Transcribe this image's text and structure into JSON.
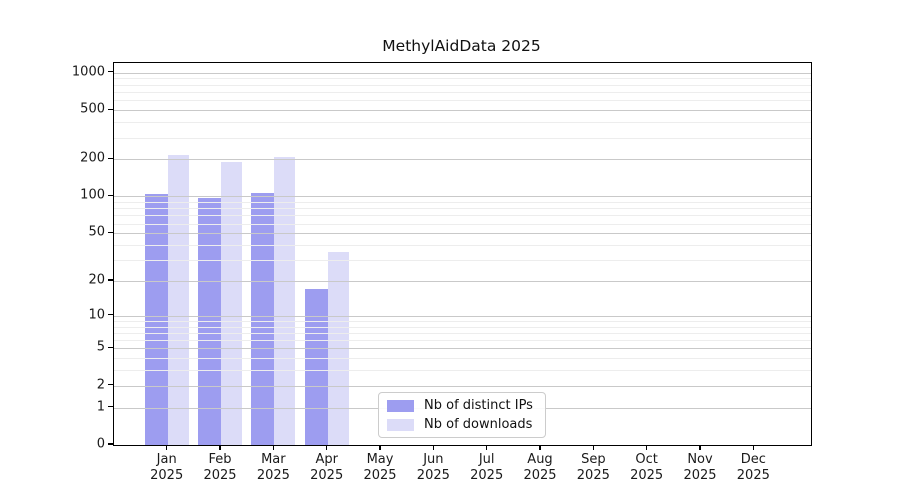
{
  "title": "MethylAidData 2025",
  "chart_data": {
    "type": "bar",
    "title": "MethylAidData 2025",
    "scale": "log1p",
    "categories": [
      "Jan",
      "Feb",
      "Mar",
      "Apr",
      "May",
      "Jun",
      "Jul",
      "Aug",
      "Sep",
      "Oct",
      "Nov",
      "Dec"
    ],
    "year": "2025",
    "series": [
      {
        "name": "Nb of distinct IPs",
        "color": "#9d9df0",
        "values": [
          105,
          97,
          106,
          17,
          0,
          0,
          0,
          0,
          0,
          0,
          0,
          0
        ]
      },
      {
        "name": "Nb of downloads",
        "color": "#dcdcf8",
        "values": [
          215,
          190,
          207,
          35,
          0,
          0,
          0,
          0,
          0,
          0,
          0,
          0
        ]
      }
    ],
    "xlabel": "",
    "ylabel": "",
    "y_ticks": [
      0,
      1,
      2,
      5,
      10,
      20,
      50,
      100,
      200,
      500,
      1000
    ],
    "y_minor_gridlines": [
      3,
      4,
      6,
      7,
      8,
      9,
      30,
      40,
      60,
      70,
      80,
      90,
      300,
      400,
      600,
      700,
      800,
      900
    ],
    "ylim": [
      0,
      1200
    ],
    "grid": "on",
    "legend_position": "bottom-center"
  }
}
